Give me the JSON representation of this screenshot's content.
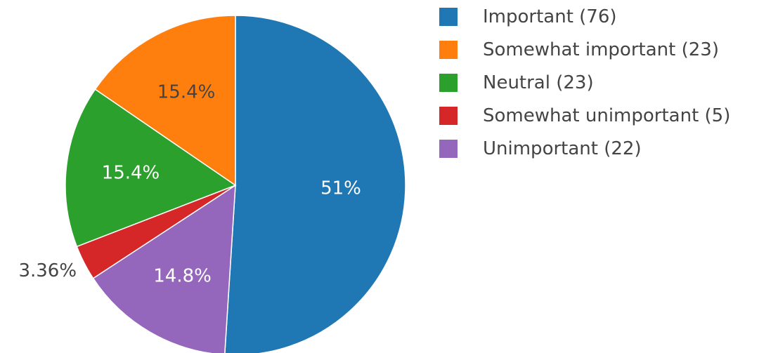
{
  "chart_data": {
    "type": "pie",
    "title": "",
    "direction": "clockwise",
    "sort": "descending",
    "legend_position": "top-right",
    "slices": [
      {
        "label": "Important (76)",
        "value": 76,
        "percent_label": "51%",
        "color": "#1f77b4",
        "text_color": "#ffffff",
        "label_position": "inside"
      },
      {
        "label": "Somewhat important (23)",
        "value": 23,
        "percent_label": "15.4%",
        "color": "#ff7f0e",
        "text_color": "#444444",
        "label_position": "inside"
      },
      {
        "label": "Neutral (23)",
        "value": 23,
        "percent_label": "15.4%",
        "color": "#2ca02c",
        "text_color": "#ffffff",
        "label_position": "inside"
      },
      {
        "label": "Somewhat unimportant (5)",
        "value": 5,
        "percent_label": "3.36%",
        "color": "#d62728",
        "text_color": "#444444",
        "label_position": "outside"
      },
      {
        "label": "Unimportant (22)",
        "value": 22,
        "percent_label": "14.8%",
        "color": "#9467bd",
        "text_color": "#ffffff",
        "label_position": "inside"
      }
    ],
    "slice_order": [
      0,
      4,
      3,
      2,
      1
    ]
  }
}
